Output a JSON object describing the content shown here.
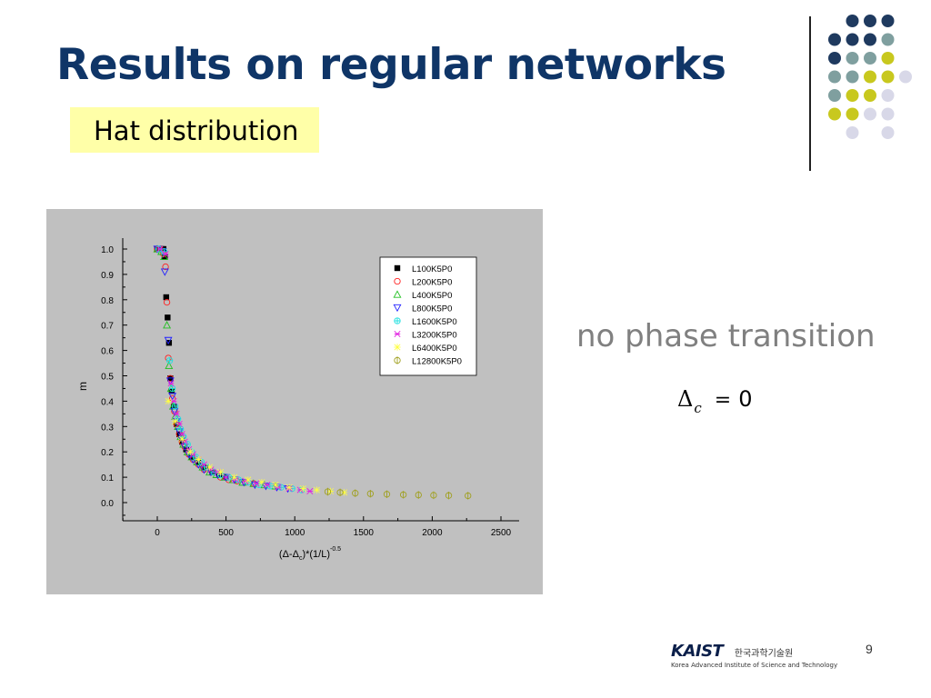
{
  "slide": {
    "title": "Results on regular networks",
    "subtitle": "Hat distribution",
    "note": "no phase transition",
    "equation": {
      "symbol": "Δ",
      "subscript": "c",
      "equals": "=",
      "value": "0"
    },
    "page_number": "9",
    "logo": {
      "name": "KAIST",
      "korean": "한국과학기술원",
      "english": "Korea Advanced Institute of Science and Technology"
    }
  },
  "dot_colors": {
    "navy": "#1f3a5f",
    "teal": "#7f9f9f",
    "olive": "#c8c81e",
    "lavender": "#d8d8e8"
  },
  "chart_data": {
    "type": "scatter",
    "xlim": [
      -250,
      2500
    ],
    "ylim": [
      -0.07,
      1.03
    ],
    "x_ticks": [
      "0",
      "500",
      "1000",
      "1500",
      "2000",
      "2500"
    ],
    "y_ticks": [
      "0.0",
      "0.1",
      "0.2",
      "0.3",
      "0.4",
      "0.5",
      "0.6",
      "0.7",
      "0.8",
      "0.9",
      "1.0"
    ],
    "ylabel": "m",
    "xlabel": {
      "a": "(Δ-Δ",
      "sub": "c",
      "b": ")*(1/L)",
      "sup": "-0.5"
    },
    "legend_position": "top-right",
    "grid": false,
    "series": [
      {
        "name": "L100K5P0",
        "marker": "square-filled",
        "color": "#000000",
        "x": [
          0,
          15,
          30,
          45,
          55,
          65,
          75,
          85,
          95,
          105,
          120,
          140,
          160,
          180,
          210,
          250,
          300,
          350,
          400,
          450,
          500
        ],
        "y": [
          1.0,
          1.0,
          1.0,
          1.0,
          0.97,
          0.81,
          0.73,
          0.63,
          0.49,
          0.44,
          0.38,
          0.31,
          0.27,
          0.24,
          0.21,
          0.18,
          0.16,
          0.14,
          0.12,
          0.11,
          0.1
        ]
      },
      {
        "name": "L200K5P0",
        "marker": "circle-open",
        "color": "#ff2020",
        "x": [
          0,
          20,
          45,
          60,
          70,
          80,
          95,
          110,
          125,
          140,
          160,
          180,
          200,
          230,
          260,
          300,
          340,
          400,
          460,
          520,
          580,
          640,
          700
        ],
        "y": [
          1.0,
          1.0,
          0.98,
          0.93,
          0.79,
          0.57,
          0.49,
          0.41,
          0.36,
          0.31,
          0.27,
          0.24,
          0.22,
          0.19,
          0.17,
          0.15,
          0.13,
          0.12,
          0.1,
          0.09,
          0.085,
          0.08,
          0.075
        ]
      },
      {
        "name": "L400K5P0",
        "marker": "triangle-up-open",
        "color": "#20c020",
        "x": [
          0,
          30,
          50,
          70,
          85,
          100,
          115,
          130,
          150,
          170,
          190,
          220,
          250,
          290,
          330,
          380,
          430,
          490,
          550,
          620,
          700,
          780,
          860
        ],
        "y": [
          1.0,
          0.99,
          0.97,
          0.7,
          0.54,
          0.45,
          0.38,
          0.34,
          0.3,
          0.26,
          0.23,
          0.2,
          0.18,
          0.16,
          0.14,
          0.12,
          0.11,
          0.1,
          0.09,
          0.08,
          0.075,
          0.07,
          0.065
        ]
      },
      {
        "name": "L800K5P0",
        "marker": "triangle-down-open",
        "color": "#2020ff",
        "x": [
          0,
          40,
          55,
          80,
          95,
          110,
          125,
          140,
          160,
          180,
          200,
          230,
          260,
          300,
          340,
          390,
          440,
          500,
          560,
          630,
          710,
          790,
          870,
          950
        ],
        "y": [
          1.0,
          0.99,
          0.91,
          0.64,
          0.48,
          0.42,
          0.36,
          0.32,
          0.28,
          0.25,
          0.22,
          0.19,
          0.17,
          0.15,
          0.13,
          0.12,
          0.11,
          0.1,
          0.09,
          0.08,
          0.07,
          0.065,
          0.06,
          0.055
        ]
      },
      {
        "name": "L1600K5P0",
        "marker": "circle-plus",
        "color": "#20e0e0",
        "x": [
          10,
          50,
          90,
          110,
          130,
          150,
          170,
          190,
          220,
          250,
          280,
          320,
          360,
          410,
          460,
          520,
          590,
          660,
          740,
          820,
          900,
          980,
          1050
        ],
        "y": [
          1.0,
          0.99,
          0.56,
          0.45,
          0.38,
          0.33,
          0.29,
          0.26,
          0.23,
          0.2,
          0.18,
          0.16,
          0.14,
          0.12,
          0.11,
          0.1,
          0.09,
          0.08,
          0.07,
          0.065,
          0.06,
          0.055,
          0.05
        ]
      },
      {
        "name": "L3200K5P0",
        "marker": "x-open",
        "color": "#e020e0",
        "x": [
          20,
          60,
          100,
          120,
          140,
          160,
          180,
          200,
          230,
          260,
          300,
          340,
          390,
          440,
          500,
          570,
          640,
          720,
          800,
          880,
          960,
          1040,
          1110
        ],
        "y": [
          1.0,
          0.98,
          0.47,
          0.4,
          0.35,
          0.31,
          0.27,
          0.24,
          0.21,
          0.19,
          0.17,
          0.15,
          0.13,
          0.12,
          0.1,
          0.09,
          0.085,
          0.075,
          0.07,
          0.06,
          0.055,
          0.05,
          0.045
        ]
      },
      {
        "name": "L6400K5P0",
        "marker": "star-open",
        "color": "#ffff40",
        "x": [
          80,
          130,
          180,
          240,
          300,
          380,
          460,
          560,
          660,
          760,
          860,
          960,
          1060,
          1160,
          1260,
          1360
        ],
        "y": [
          0.4,
          0.32,
          0.25,
          0.2,
          0.17,
          0.14,
          0.12,
          0.1,
          0.09,
          0.08,
          0.07,
          0.06,
          0.055,
          0.05,
          0.045,
          0.04
        ]
      },
      {
        "name": "L12800K5P0",
        "marker": "circle-bar",
        "color": "#a0a020",
        "x": [
          1240,
          1330,
          1440,
          1550,
          1670,
          1790,
          1900,
          2010,
          2120,
          2260
        ],
        "y": [
          0.043,
          0.04,
          0.037,
          0.035,
          0.033,
          0.031,
          0.03,
          0.029,
          0.028,
          0.027
        ]
      }
    ]
  }
}
